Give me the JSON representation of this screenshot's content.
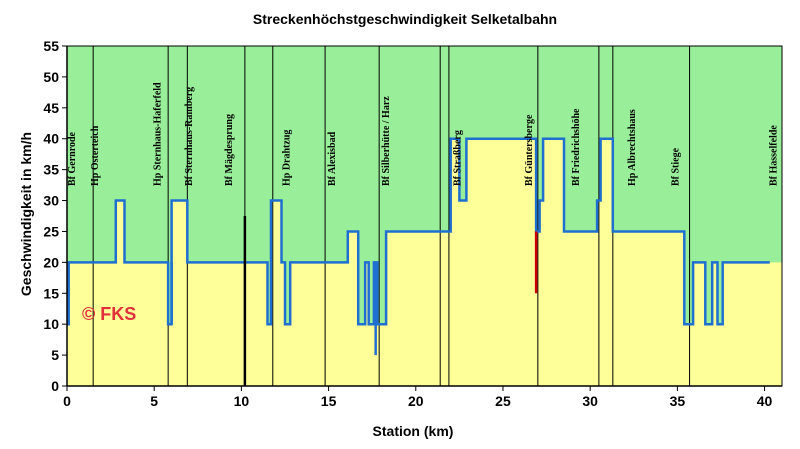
{
  "chart_data": {
    "type": "line",
    "title": "Streckenhöchstgeschwindigkeit Selketalbahn",
    "xlabel": "Station (km)",
    "ylabel": "Geschwindigkeit in km/h",
    "xlim": [
      0,
      41
    ],
    "ylim": [
      0,
      55
    ],
    "xticks": [
      0,
      5,
      10,
      15,
      20,
      25,
      30,
      35,
      40
    ],
    "yticks": [
      0,
      5,
      10,
      15,
      20,
      25,
      30,
      35,
      40,
      45,
      50,
      55
    ],
    "grid": "none",
    "watermark": "© FKS",
    "colors": {
      "above_fill": "#99ee99",
      "below_fill": "#ffff99",
      "speed_line": "#1f6fd0",
      "station_line": "#000000",
      "highlight_red": "#cc0000"
    },
    "stations": [
      {
        "km": 0.3,
        "name": "Bf Gernrode"
      },
      {
        "km": 1.6,
        "name": "Hp Osterteich"
      },
      {
        "km": 5.2,
        "name": "Hp Sternhaus-Haferfeld"
      },
      {
        "km": 7.0,
        "name": "Bf Sternhaus-Ramberg"
      },
      {
        "km": 9.3,
        "name": "Bf Mägdesprung"
      },
      {
        "km": 12.6,
        "name": "Hp Drahtzug"
      },
      {
        "km": 15.2,
        "name": "Bf Alexisbad"
      },
      {
        "km": 18.3,
        "name": "Bf Silberhütte / Harz"
      },
      {
        "km": 22.4,
        "name": "Bf Straßberg"
      },
      {
        "km": 26.5,
        "name": "Bf Güntersberge"
      },
      {
        "km": 29.2,
        "name": "Bf Friedrichshöhe"
      },
      {
        "km": 32.4,
        "name": "Hp Albrechtshaus"
      },
      {
        "km": 34.9,
        "name": "Bf Stiege"
      },
      {
        "km": 40.5,
        "name": "Bf Hasselfelde"
      }
    ],
    "station_lines_km": [
      1.5,
      5.8,
      6.9,
      10.2,
      11.8,
      14.8,
      17.9,
      21.4,
      21.9,
      27.0,
      30.5,
      31.3,
      35.7
    ],
    "series": [
      {
        "x": [
          0,
          0.1,
          0.1,
          2.8,
          2.8,
          3.3,
          3.3,
          5.8,
          5.8,
          6.0,
          6.0,
          6.9,
          6.9,
          11.5,
          11.5,
          11.7,
          11.7,
          12.3,
          12.3,
          12.5,
          12.5,
          12.8,
          12.8,
          16.1,
          16.1,
          16.7,
          16.7,
          17.1,
          17.1,
          17.3,
          17.3,
          17.6,
          17.6,
          17.8,
          17.8,
          18.3,
          18.3,
          18.5,
          18.5,
          22.0,
          22.0,
          22.5,
          22.5,
          22.9,
          22.9,
          26.9,
          26.9,
          27.1,
          27.1,
          27.3,
          27.3,
          28.5,
          28.5,
          30.4,
          30.4,
          30.6,
          30.6,
          31.3,
          31.3,
          35.4,
          35.4,
          35.9,
          35.9,
          36.6,
          36.6,
          37.0,
          37.0,
          37.3,
          37.3,
          37.6,
          37.6,
          38.2,
          38.2,
          40.3
        ],
        "y": [
          10,
          10,
          20,
          20,
          30,
          30,
          20,
          20,
          10,
          10,
          30,
          30,
          20,
          20,
          10,
          10,
          30,
          30,
          20,
          20,
          10,
          10,
          20,
          20,
          25,
          25,
          10,
          10,
          20,
          20,
          10,
          10,
          20,
          20,
          10,
          10,
          25,
          25,
          25,
          25,
          40,
          40,
          30,
          30,
          40,
          40,
          25,
          25,
          30,
          30,
          40,
          40,
          25,
          25,
          30,
          30,
          40,
          40,
          25,
          25,
          10,
          10,
          20,
          20,
          10,
          10,
          20,
          20,
          10,
          10,
          20,
          20,
          20,
          20
        ]
      }
    ],
    "dips": [
      {
        "km": 6.0,
        "from": 20,
        "to": 10,
        "color": "blue"
      },
      {
        "km": 10.2,
        "from": 27.5,
        "to": 0,
        "color": "black"
      },
      {
        "km": 17.7,
        "from": 20,
        "to": 5,
        "color": "blue"
      },
      {
        "km": 26.9,
        "from": 25,
        "to": 15,
        "color": "red"
      }
    ]
  }
}
